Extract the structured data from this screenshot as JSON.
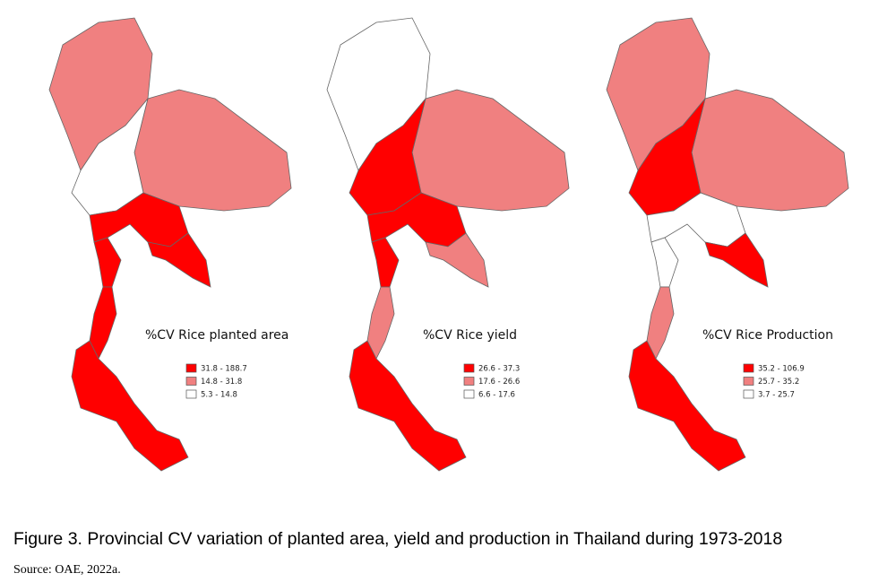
{
  "maps": [
    {
      "title": "%CV Rice planted area",
      "legend": [
        {
          "label": "31.8 - 188.7",
          "color": "#ff0000"
        },
        {
          "label": "14.8 - 31.8",
          "color": "#f08080"
        },
        {
          "label": "5.3 - 14.8",
          "color": "#ffffff"
        }
      ]
    },
    {
      "title": "%CV Rice yield",
      "legend": [
        {
          "label": "26.6 - 37.3",
          "color": "#ff0000"
        },
        {
          "label": "17.6 - 26.6",
          "color": "#f08080"
        },
        {
          "label": "6.6 - 17.6",
          "color": "#ffffff"
        }
      ]
    },
    {
      "title": "%CV Rice Production",
      "legend": [
        {
          "label": "35.2 - 106.9",
          "color": "#ff0000"
        },
        {
          "label": "25.7 - 35.2",
          "color": "#f08080"
        },
        {
          "label": "3.7 - 25.7",
          "color": "#ffffff"
        }
      ]
    }
  ],
  "caption": "Figure 3. Provincial CV variation of planted area, yield and production in Thailand during 1973-2018",
  "source": "Source: OAE, 2022a."
}
